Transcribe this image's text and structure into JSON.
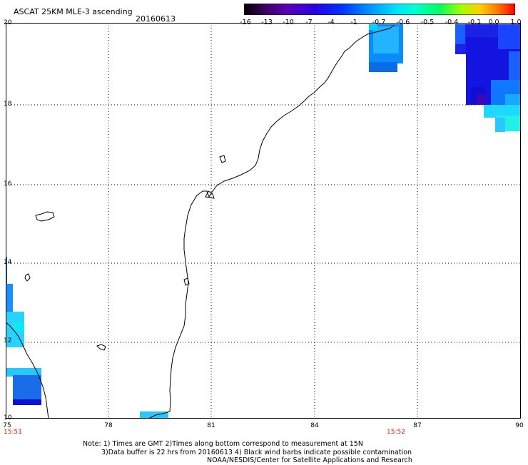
{
  "header": {
    "title": "ASCAT 25KM MLE-3 ascending",
    "date": "20160613"
  },
  "colorbar": {
    "tick_labels": [
      "-16",
      "-13",
      "-10",
      "-7",
      "-4",
      "-1",
      "-0.7",
      "-0.6",
      "-0.5",
      "-0.4",
      "-0.1",
      "0.0",
      "1.0"
    ],
    "colors": [
      "#000000",
      "#3d0063",
      "#5a00b8",
      "#2a00e0",
      "#0033ff",
      "#0080ff",
      "#00c0ff",
      "#00f0e8",
      "#00ff80",
      "#60ff00",
      "#d0ff00",
      "#ffd000",
      "#ff7000",
      "#ff0000"
    ]
  },
  "axes": {
    "x_labels": [
      "75",
      "78",
      "81",
      "84",
      "87",
      "90"
    ],
    "y_labels": [
      "20",
      "18",
      "16",
      "14",
      "12",
      "10"
    ]
  },
  "times": {
    "left": "15:51",
    "right": "15:52"
  },
  "notes": {
    "line1": "Note: 1) Times are GMT 2)Times along bottom correspond to measurement at 15N",
    "line2": "3)Data buffer is 22 hrs from 20160613 4) Black wind barbs indicate possible contamination",
    "line3": "NOAA/NESDIS/Center for Satellite Applications and Research"
  }
}
